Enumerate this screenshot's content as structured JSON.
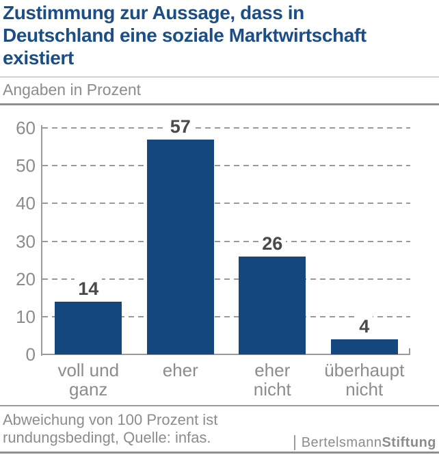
{
  "title": {
    "text": "Zustimmung zur Aussage, dass in Deutschland eine soziale Marktwirtschaft existiert",
    "lines": [
      "Zustimmung zur Aussage, dass in",
      "Deutschland eine soziale Marktwirtschaft",
      "existiert"
    ]
  },
  "subtitle": "Angaben in Prozent",
  "chart_data": {
    "type": "bar",
    "title": "Zustimmung zur Aussage, dass in Deutschland eine soziale Marktwirtschaft existiert",
    "subtitle": "Angaben in Prozent",
    "categories": [
      "voll und ganz",
      "eher",
      "eher nicht",
      "überhaupt nicht"
    ],
    "category_lines": [
      [
        "voll und",
        "ganz"
      ],
      [
        "eher"
      ],
      [
        "eher",
        "nicht"
      ],
      [
        "überhaupt",
        "nicht"
      ]
    ],
    "values": [
      14,
      57,
      26,
      4
    ],
    "xlabel": "",
    "ylabel": "",
    "ylim": [
      0,
      60
    ],
    "yticks": [
      0,
      10,
      20,
      30,
      40,
      50,
      60
    ],
    "grid": "horizontal-dashed",
    "legend": "none",
    "unit": "Prozent"
  },
  "colors": {
    "title_blue": "#1b4d86",
    "bar_blue": "#14477d",
    "gray_text": "#8c8c8c",
    "value_label_gray": "#4a4a4a",
    "line_gray": "#9a9a9a"
  },
  "footer": {
    "note_lines": [
      "Abweichung von 100 Prozent ist",
      "rundungsbedingt, Quelle: infas."
    ]
  },
  "logo": {
    "name_regular": "Bertelsmann",
    "name_bold": "Stiftung"
  }
}
